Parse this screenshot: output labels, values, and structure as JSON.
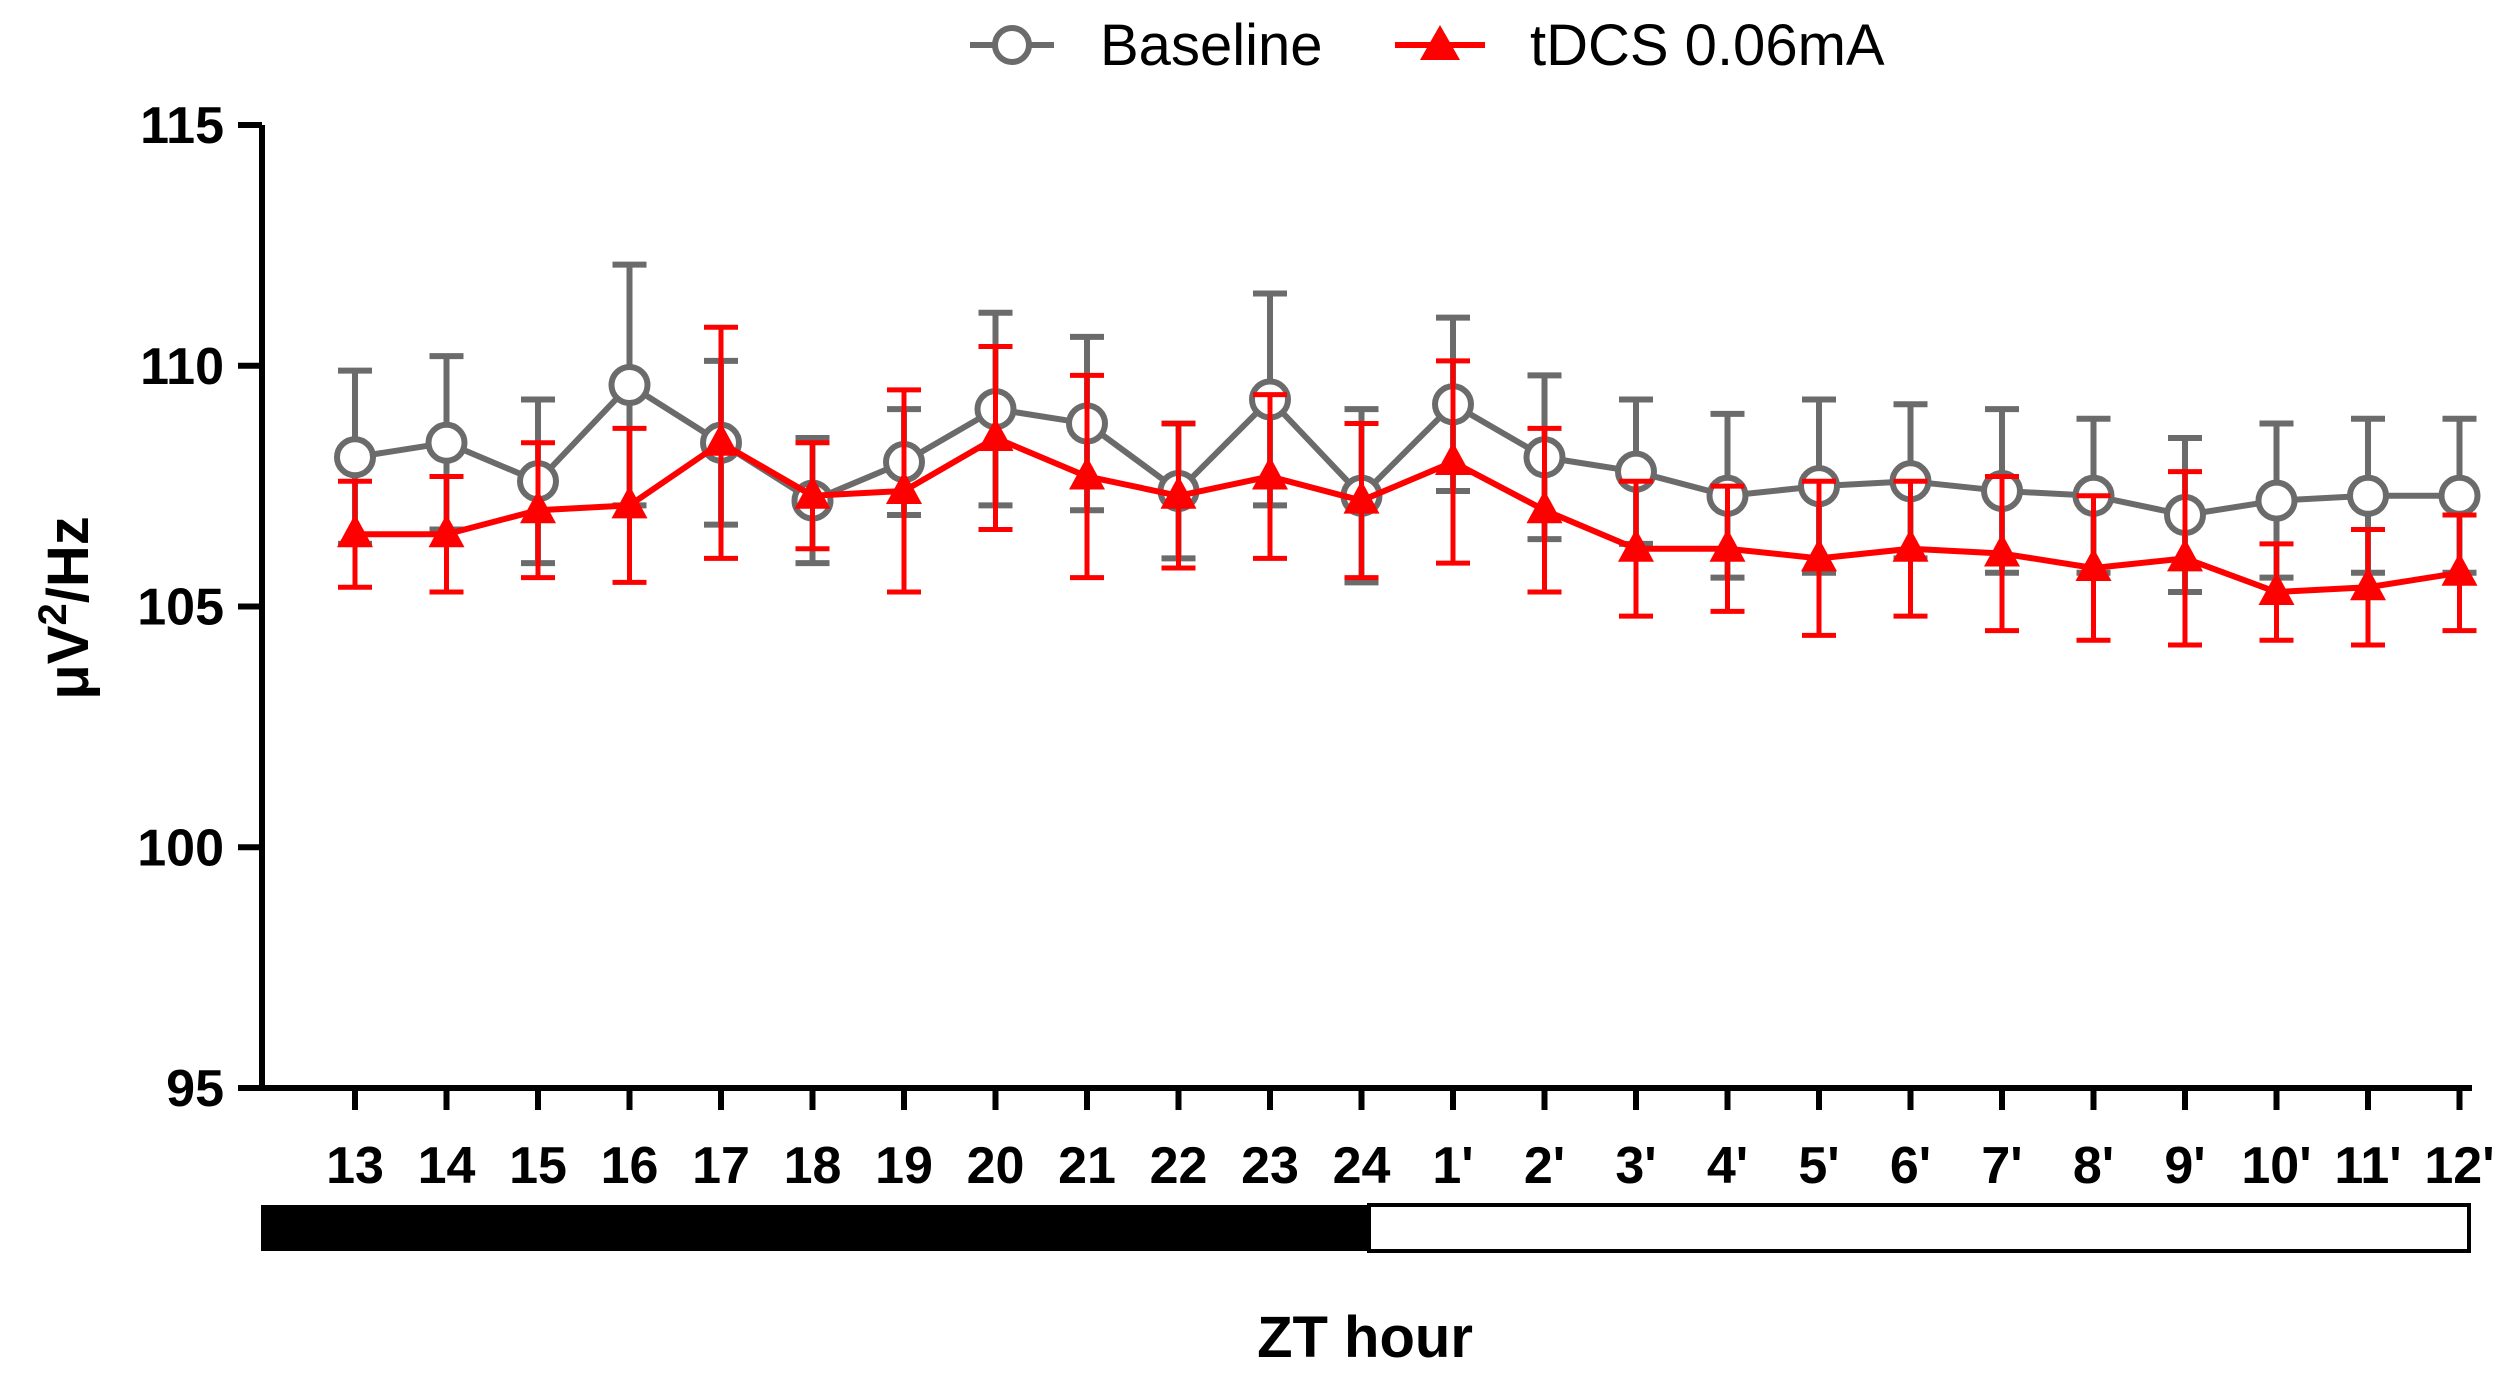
{
  "chart_data": {
    "type": "line",
    "title": "",
    "xlabel": "ZT hour",
    "ylabel": "μV²/Hz",
    "ylabel_parts": {
      "base": "μV",
      "sup": "2",
      "rest": "/Hz"
    },
    "ylim": [
      95,
      115
    ],
    "yticks": [
      95,
      100,
      105,
      110,
      115
    ],
    "ytick_labels": [
      "95",
      "100",
      "105",
      "110",
      "115"
    ],
    "categories": [
      "13",
      "14",
      "15",
      "16",
      "17",
      "18",
      "19",
      "20",
      "21",
      "22",
      "23",
      "24",
      "1'",
      "2'",
      "3'",
      "4'",
      "5'",
      "6'",
      "7'",
      "8'",
      "9'",
      "10'",
      "11'",
      "12'"
    ],
    "legend_position": "top-center",
    "series": [
      {
        "name": "Baseline",
        "marker": "open-circle",
        "color": "#6b6b6b",
        "values": [
          108.1,
          108.4,
          107.6,
          109.6,
          108.4,
          107.2,
          108.0,
          109.1,
          108.8,
          107.4,
          109.3,
          107.3,
          109.2,
          108.1,
          107.8,
          107.3,
          107.5,
          107.6,
          107.4,
          107.3,
          106.9,
          107.2,
          107.3,
          107.3
        ],
        "error": [
          1.8,
          1.8,
          1.7,
          2.5,
          1.7,
          1.3,
          1.1,
          2.0,
          1.8,
          1.4,
          2.2,
          1.8,
          1.8,
          1.7,
          1.5,
          1.7,
          1.8,
          1.6,
          1.7,
          1.6,
          1.6,
          1.6,
          1.6,
          1.6
        ]
      },
      {
        "name": "tDCS 0.06mA",
        "marker": "filled-triangle",
        "color": "#ff0000",
        "values": [
          106.5,
          106.5,
          107.0,
          107.1,
          108.4,
          107.3,
          107.4,
          108.5,
          107.7,
          107.3,
          107.7,
          107.2,
          108.0,
          107.0,
          106.2,
          106.2,
          106.0,
          106.2,
          106.1,
          105.8,
          106.0,
          105.3,
          105.4,
          105.7
        ],
        "error": [
          1.1,
          1.2,
          1.4,
          1.6,
          2.4,
          1.1,
          2.1,
          1.9,
          2.1,
          1.5,
          1.7,
          1.6,
          2.1,
          1.7,
          1.4,
          1.3,
          1.6,
          1.4,
          1.6,
          1.5,
          1.8,
          1.0,
          1.2,
          1.2
        ]
      }
    ],
    "light_dark_bar": {
      "dark_segment": "13-24",
      "light_segment": "1'-12'",
      "dark_color": "#000000",
      "light_color": "#ffffff"
    }
  }
}
